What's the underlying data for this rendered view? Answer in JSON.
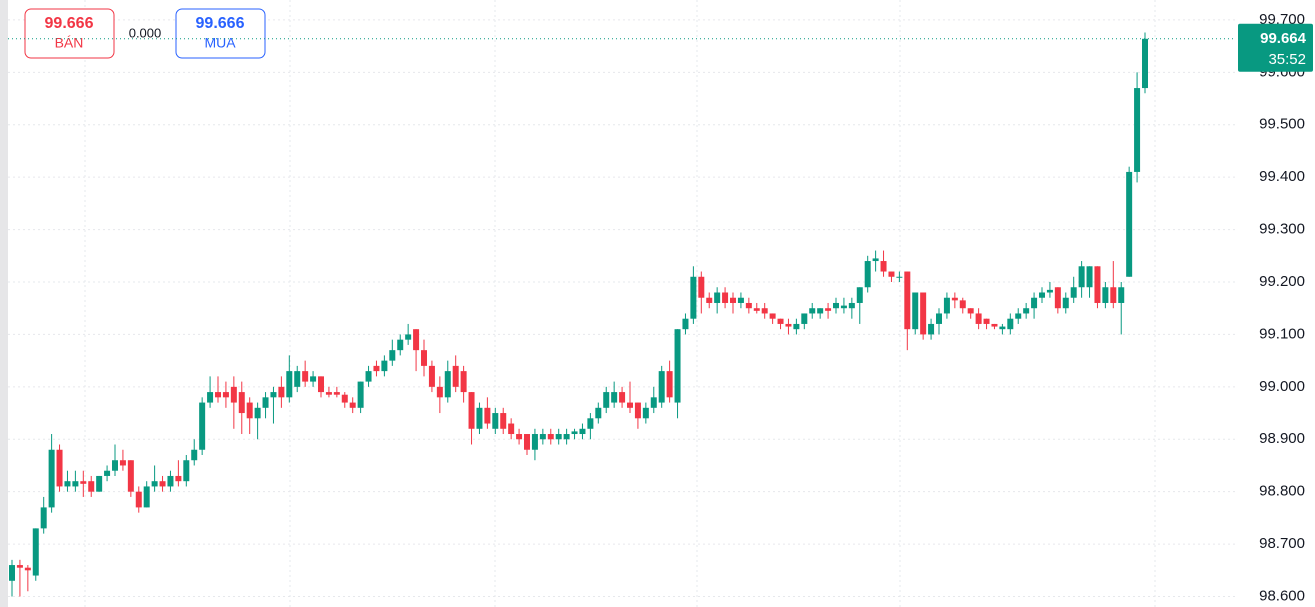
{
  "chart_data": {
    "type": "candlestick",
    "open": [
      98.63,
      98.66,
      98.655,
      98.64,
      98.73,
      98.77,
      98.88,
      98.81,
      98.81,
      98.82,
      98.82,
      98.8,
      98.83,
      98.84,
      98.86,
      98.86,
      98.8,
      98.77,
      98.81,
      98.82,
      98.81,
      98.83,
      98.82,
      98.86,
      98.88,
      98.97,
      98.99,
      98.99,
      99.0,
      98.99,
      98.97,
      98.94,
      98.96,
      98.98,
      99.0,
      98.98,
      99.0,
      99.03,
      99.01,
      99.02,
      98.99,
      98.99,
      98.985,
      98.97,
      98.96,
      99.01,
      99.04,
      99.03,
      99.05,
      99.07,
      99.09,
      99.11,
      99.07,
      99.04,
      99.0,
      98.98,
      99.04,
      99.03,
      98.99,
      98.92,
      98.96,
      98.92,
      98.95,
      98.93,
      98.91,
      98.91,
      98.88,
      98.9,
      98.91,
      98.9,
      98.9,
      98.91,
      98.91,
      98.92,
      98.94,
      98.96,
      98.97,
      98.99,
      98.97,
      98.97,
      98.94,
      98.96,
      98.97,
      99.03,
      98.97,
      99.11,
      99.13,
      99.21,
      99.17,
      99.16,
      99.18,
      99.17,
      99.16,
      99.16,
      99.15,
      99.15,
      99.14,
      99.13,
      99.12,
      99.11,
      99.12,
      99.14,
      99.14,
      99.15,
      99.15,
      99.15,
      99.15,
      99.16,
      99.19,
      99.24,
      99.24,
      99.22,
      99.21,
      99.22,
      99.11,
      99.18,
      99.1,
      99.12,
      99.14,
      99.17,
      99.165,
      99.15,
      99.14,
      99.13,
      99.12,
      99.11,
      99.11,
      99.13,
      99.14,
      99.15,
      99.17,
      99.18,
      99.19,
      99.15,
      99.17,
      99.19,
      99.19,
      99.23,
      99.16,
      99.19,
      99.16,
      99.21,
      99.41,
      99.57
    ],
    "high": [
      98.67,
      98.67,
      98.66,
      98.73,
      98.79,
      98.91,
      98.89,
      98.84,
      98.84,
      98.84,
      98.83,
      98.83,
      98.85,
      98.89,
      98.88,
      98.86,
      98.81,
      98.82,
      98.85,
      98.83,
      98.84,
      98.86,
      98.87,
      98.9,
      98.98,
      99.02,
      99.02,
      99.01,
      99.02,
      99.01,
      98.98,
      98.97,
      98.99,
      99.0,
      99.02,
      99.06,
      99.04,
      99.05,
      99.03,
      99.02,
      99.0,
      99.0,
      98.99,
      98.98,
      99.01,
      99.04,
      99.05,
      99.06,
      99.09,
      99.1,
      99.12,
      99.11,
      99.09,
      99.05,
      99.02,
      99.05,
      99.06,
      99.04,
      98.99,
      98.97,
      98.98,
      98.96,
      98.96,
      98.94,
      98.92,
      98.91,
      98.92,
      98.92,
      98.92,
      98.92,
      98.92,
      98.92,
      98.93,
      98.95,
      98.97,
      99.0,
      99.01,
      99.0,
      99.01,
      98.97,
      98.97,
      99.0,
      99.04,
      99.05,
      99.11,
      99.14,
      99.23,
      99.22,
      99.18,
      99.19,
      99.19,
      99.18,
      99.18,
      99.17,
      99.16,
      99.16,
      99.14,
      99.13,
      99.13,
      99.13,
      99.14,
      99.16,
      99.15,
      99.16,
      99.17,
      99.17,
      99.17,
      99.19,
      99.25,
      99.26,
      99.26,
      99.22,
      99.22,
      99.22,
      99.18,
      99.18,
      99.13,
      99.15,
      99.18,
      99.18,
      99.17,
      99.15,
      99.15,
      99.13,
      99.12,
      99.12,
      99.14,
      99.15,
      99.16,
      99.18,
      99.19,
      99.2,
      99.19,
      99.18,
      99.21,
      99.24,
      99.23,
      99.23,
      99.2,
      99.24,
      99.2,
      99.42,
      99.6,
      99.676
    ],
    "low": [
      98.6,
      98.6,
      98.61,
      98.63,
      98.72,
      98.76,
      98.8,
      98.8,
      98.8,
      98.79,
      98.79,
      98.8,
      98.82,
      98.83,
      98.84,
      98.79,
      98.76,
      98.77,
      98.8,
      98.8,
      98.8,
      98.81,
      98.81,
      98.85,
      98.87,
      98.96,
      98.97,
      98.96,
      98.92,
      98.91,
      98.91,
      98.9,
      98.94,
      98.93,
      98.96,
      98.97,
      98.99,
      99.0,
      99.0,
      98.98,
      98.98,
      98.98,
      98.96,
      98.95,
      98.95,
      99.0,
      99.02,
      99.02,
      99.04,
      99.06,
      99.08,
      99.03,
      99.02,
      98.99,
      98.95,
      98.97,
      98.99,
      98.97,
      98.89,
      98.91,
      98.92,
      98.91,
      98.91,
      98.9,
      98.89,
      98.87,
      98.86,
      98.89,
      98.89,
      98.89,
      98.89,
      98.9,
      98.9,
      98.9,
      98.93,
      98.95,
      98.96,
      98.96,
      98.95,
      98.92,
      98.93,
      98.95,
      98.96,
      98.97,
      98.94,
      99.1,
      99.12,
      99.14,
      99.15,
      99.14,
      99.15,
      99.14,
      99.15,
      99.14,
      99.14,
      99.13,
      99.12,
      99.11,
      99.1,
      99.1,
      99.11,
      99.13,
      99.13,
      99.13,
      99.14,
      99.14,
      99.13,
      99.12,
      99.18,
      99.22,
      99.21,
      99.2,
      99.2,
      99.07,
      99.1,
      99.09,
      99.09,
      99.1,
      99.13,
      99.15,
      99.14,
      99.13,
      99.11,
      99.11,
      99.11,
      99.1,
      99.1,
      99.12,
      99.13,
      99.13,
      99.16,
      99.17,
      99.14,
      99.14,
      99.16,
      99.17,
      99.17,
      99.15,
      99.15,
      99.15,
      99.1,
      99.21,
      99.39,
      99.56
    ],
    "close": [
      98.66,
      98.655,
      98.65,
      98.73,
      98.77,
      98.88,
      98.81,
      98.82,
      98.82,
      98.815,
      98.8,
      98.83,
      98.84,
      98.86,
      98.85,
      98.8,
      98.77,
      98.81,
      98.82,
      98.81,
      98.83,
      98.82,
      98.86,
      98.88,
      98.97,
      98.99,
      98.98,
      98.98,
      98.97,
      98.95,
      98.94,
      98.96,
      98.98,
      98.99,
      98.98,
      99.03,
      99.03,
      99.01,
      99.02,
      98.99,
      98.985,
      98.985,
      98.97,
      98.96,
      99.01,
      99.03,
      99.03,
      99.05,
      99.07,
      99.09,
      99.1,
      99.07,
      99.04,
      99.0,
      98.98,
      99.03,
      99.0,
      98.99,
      98.92,
      98.96,
      98.93,
      98.95,
      98.92,
      98.91,
      98.9,
      98.88,
      98.91,
      98.91,
      98.9,
      98.91,
      98.91,
      98.915,
      98.92,
      98.94,
      98.96,
      98.99,
      98.99,
      98.97,
      98.96,
      98.94,
      98.96,
      98.98,
      99.03,
      98.98,
      99.11,
      99.13,
      99.21,
      99.17,
      99.16,
      99.18,
      99.16,
      99.16,
      99.17,
      99.15,
      99.145,
      99.14,
      99.13,
      99.12,
      99.115,
      99.12,
      99.14,
      99.15,
      99.15,
      99.145,
      99.16,
      99.155,
      99.16,
      99.19,
      99.24,
      99.245,
      99.22,
      99.21,
      99.21,
      99.11,
      99.18,
      99.1,
      99.12,
      99.14,
      99.17,
      99.165,
      99.15,
      99.14,
      99.12,
      99.12,
      99.115,
      99.115,
      99.13,
      99.14,
      99.15,
      99.17,
      99.18,
      99.185,
      99.15,
      99.17,
      99.19,
      99.23,
      99.23,
      99.16,
      99.19,
      99.16,
      99.19,
      99.41,
      99.57,
      99.664
    ],
    "up_color": "#089981",
    "down_color": "#f23645",
    "ylim": [
      98.58,
      99.738
    ],
    "yticks": [
      {
        "value": 98.6,
        "label": "98.600"
      },
      {
        "value": 98.7,
        "label": "98.700"
      },
      {
        "value": 98.8,
        "label": "98.800"
      },
      {
        "value": 98.9,
        "label": "98.900"
      },
      {
        "value": 99.0,
        "label": "99.000"
      },
      {
        "value": 99.1,
        "label": "99.100"
      },
      {
        "value": 99.2,
        "label": "99.200"
      },
      {
        "value": 99.3,
        "label": "99.300"
      },
      {
        "value": 99.4,
        "label": "99.400"
      },
      {
        "value": 99.5,
        "label": "99.500"
      },
      {
        "value": 99.6,
        "label": "99.600"
      },
      {
        "value": 99.7,
        "label": "99.700"
      }
    ],
    "grid": true,
    "last_price": {
      "value": 99.664,
      "label": "99.664",
      "countdown": "35:52"
    }
  },
  "order_panel": {
    "sell": {
      "price": "99.666",
      "label": "BÁN"
    },
    "spread": "0.000",
    "buy": {
      "price": "99.666",
      "label": "MUA"
    }
  }
}
